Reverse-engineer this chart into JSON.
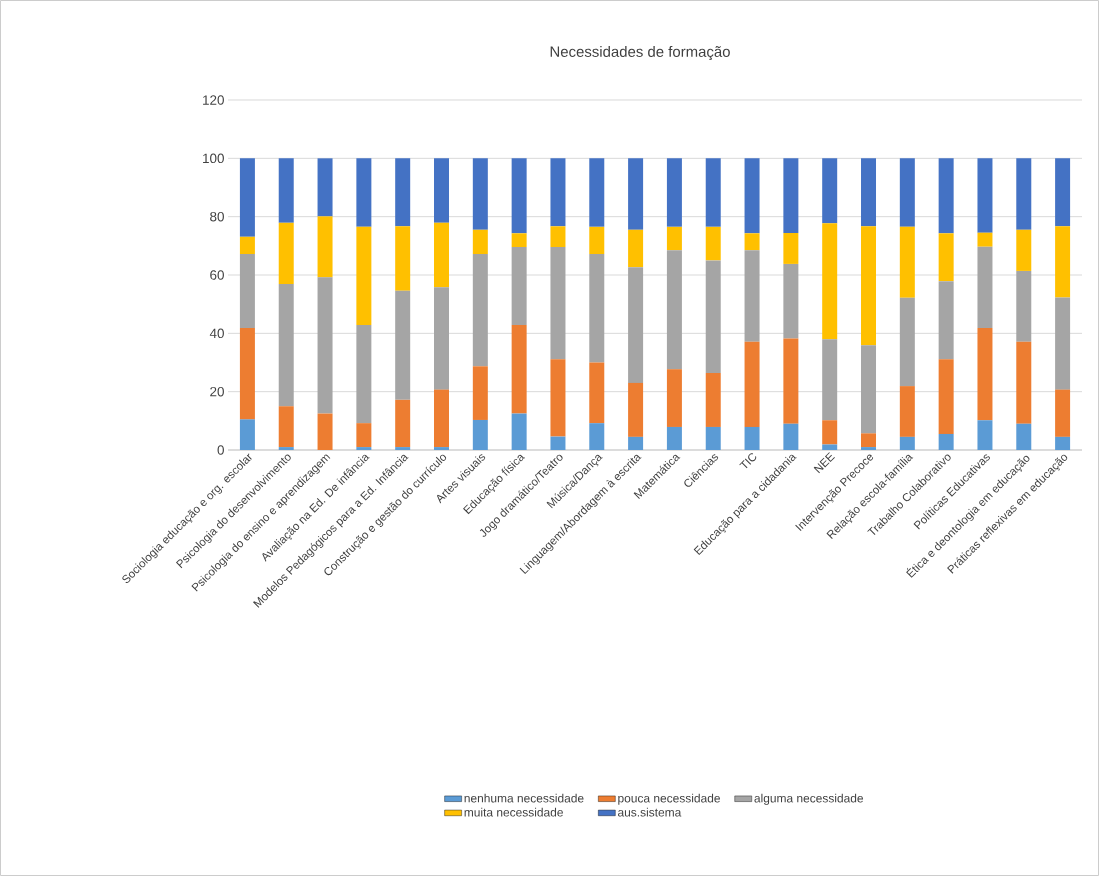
{
  "chart_data": {
    "type": "bar",
    "stacked": true,
    "title": "Necessidades de formação",
    "categories": [
      "Sociologia educação e org. escolar",
      "Psicologia do desenvolvimento",
      "Psicologia do ensino e aprendizagem",
      "Avaliação na Ed. De infância",
      "Modelos Pedagógicos para a Ed. Infância",
      "Construção e gestão do currículo",
      "Artes visuais",
      "Educação física",
      "Jogo dramático/Teatro",
      "Música/Dança",
      "Linguagem/Abordagem à escrita",
      "Matemática",
      "Ciências",
      "TIC",
      "Educação para a cidadania",
      "NEE",
      "Intervenção Precoce",
      "Relação escola-família",
      "Trabalho Colaborativo",
      "Políticas Educativas",
      "Ética e deontologia em educação",
      "Práticas reflexivas em educação"
    ],
    "series": [
      {
        "name": "nenhuma necessidade",
        "color": "#5b9bd5",
        "values": [
          10.5,
          1,
          0,
          1,
          1,
          1,
          10.3,
          12.5,
          4.6,
          9.2,
          4.5,
          7.9,
          7.9,
          7.9,
          9.0,
          1.9,
          1,
          4.5,
          5.5,
          10.2,
          9.0,
          4.5
        ]
      },
      {
        "name": "pouca necessidade",
        "color": "#ed7d31",
        "values": [
          31.3,
          14,
          12.5,
          8.2,
          16.2,
          19.7,
          18.4,
          30.4,
          26.5,
          20.8,
          18.5,
          19.8,
          18.5,
          29.2,
          29.2,
          8.3,
          4.7,
          17.4,
          25.6,
          31.6,
          28.1,
          16.2
        ]
      },
      {
        "name": "alguma necessidade",
        "color": "#a5a5a5",
        "values": [
          25.4,
          41.9,
          46.7,
          33.7,
          37.4,
          35.1,
          38.5,
          26.7,
          38.5,
          37.2,
          39.7,
          40.8,
          38.6,
          31.4,
          25.6,
          27.8,
          30.2,
          30.3,
          26.8,
          27.9,
          24.3,
          31.6
        ]
      },
      {
        "name": "muita necessidade",
        "color": "#ffc000",
        "values": [
          5.9,
          21,
          20.9,
          33.6,
          22.1,
          22.1,
          8.3,
          4.7,
          7.1,
          9.3,
          12.8,
          8.0,
          11.5,
          5.8,
          10.6,
          39.7,
          40.8,
          24.3,
          16.4,
          4.8,
          14.1,
          24.4
        ]
      },
      {
        "name": "aus.sistema",
        "color": "#4472c4",
        "values": [
          26.9,
          22.1,
          19.9,
          23.5,
          23.3,
          22.1,
          24.5,
          25.7,
          23.3,
          23.5,
          24.5,
          23.5,
          23.5,
          25.7,
          25.6,
          22.3,
          23.3,
          23.5,
          25.7,
          25.5,
          24.5,
          23.3
        ]
      }
    ],
    "ylim": [
      0,
      120
    ],
    "yticks": [
      0,
      20,
      40,
      60,
      80,
      100,
      120
    ],
    "grid": "y",
    "legend": "bottom"
  }
}
